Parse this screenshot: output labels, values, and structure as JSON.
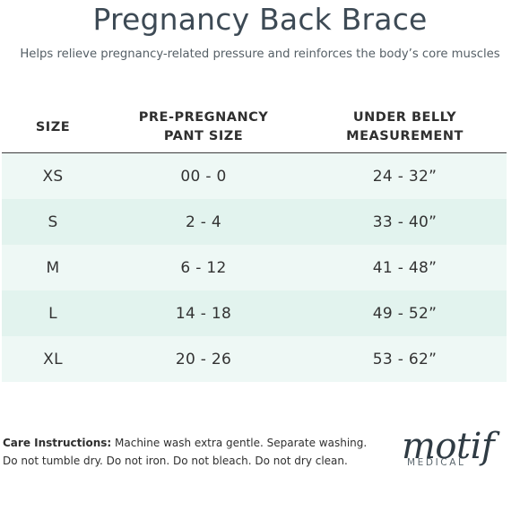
{
  "header": {
    "title": "Pregnancy Back Brace",
    "subtitle": "Helps relieve pregnancy-related pressure and reinforces the body’s core muscles"
  },
  "table": {
    "columns": [
      {
        "line1": "SIZE",
        "line2": ""
      },
      {
        "line1": "PRE-PREGNANCY",
        "line2": "PANT SIZE"
      },
      {
        "line1": "UNDER BELLY",
        "line2": "MEASUREMENT"
      }
    ],
    "rows": [
      {
        "size": "XS",
        "pant": "00 - 0",
        "belly": "24 - 32”"
      },
      {
        "size": "S",
        "pant": "2 - 4",
        "belly": "33 - 40”"
      },
      {
        "size": "M",
        "pant": "6 - 12",
        "belly": "41 - 48”"
      },
      {
        "size": "L",
        "pant": "14 - 18",
        "belly": "49 - 52”"
      },
      {
        "size": "XL",
        "pant": "20 - 26",
        "belly": "53 - 62”"
      }
    ]
  },
  "care": {
    "label": "Care Instructions:",
    "line1": "Machine wash extra gentle. Separate washing.",
    "line2": "Do not tumble dry. Do not iron. Do not bleach. Do not dry clean."
  },
  "logo": {
    "word": "motif",
    "sub": "MEDICAL"
  },
  "colors": {
    "row_light": "#eef8f5",
    "row_dark": "#e2f3ee",
    "title": "#3d4a55"
  }
}
